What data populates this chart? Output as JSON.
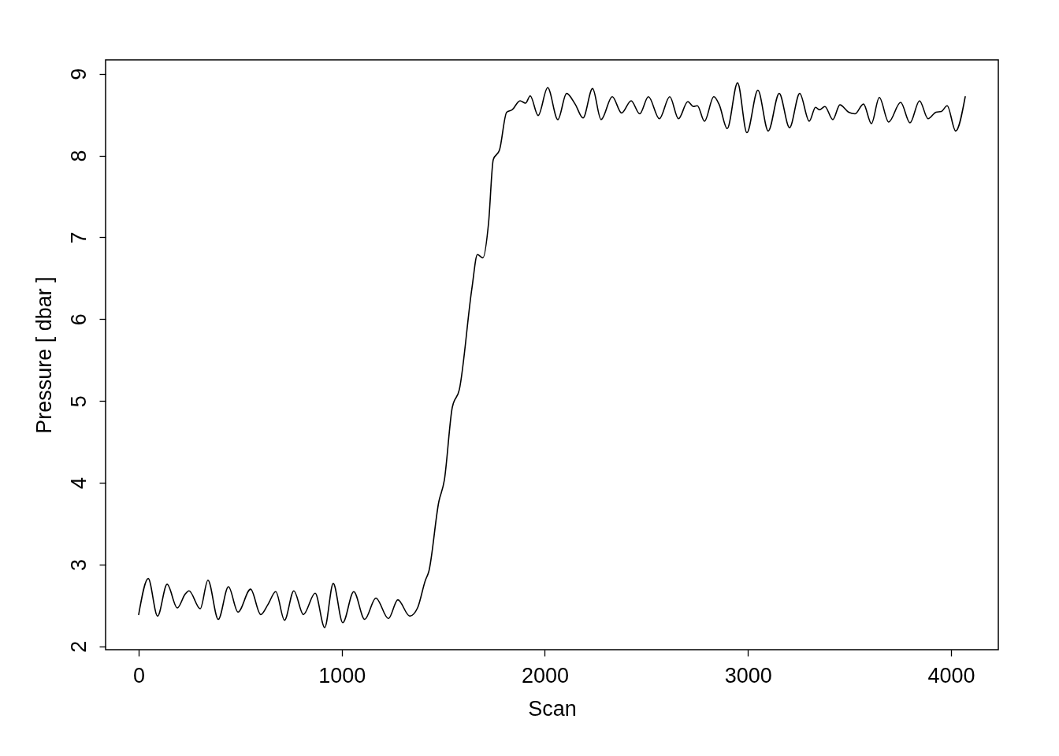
{
  "chart_data": {
    "type": "line",
    "xlabel": "Scan",
    "ylabel": "Pressure [ dbar ]",
    "color": "#000000",
    "line_style": "solid",
    "grid": false,
    "x": [
      0,
      47,
      93,
      140,
      190,
      229,
      248,
      303,
      341,
      392,
      442,
      489,
      551,
      601,
      636,
      675,
      718,
      764,
      811,
      869,
      916,
      958,
      1005,
      1059,
      1113,
      1168,
      1230,
      1276,
      1335,
      1373,
      1412,
      1428,
      1478,
      1505,
      1544,
      1579,
      1641,
      1668,
      1695,
      1723,
      1746,
      1777,
      1812,
      1839,
      1878,
      1905,
      1928,
      1967,
      2014,
      2064,
      2107,
      2149,
      2188,
      2235,
      2277,
      2332,
      2378,
      2425,
      2467,
      2510,
      2564,
      2615,
      2658,
      2704,
      2731,
      2751,
      2786,
      2832,
      2859,
      2898,
      2949,
      2995,
      3049,
      3100,
      3154,
      3205,
      3255,
      3302,
      3333,
      3352,
      3379,
      3418,
      3453,
      3496,
      3527,
      3569,
      3608,
      3647,
      3693,
      3752,
      3798,
      3845,
      3887,
      3926,
      3953,
      3981,
      4023,
      4070
    ],
    "values": [
      2.39,
      2.83,
      2.37,
      2.76,
      2.47,
      2.64,
      2.68,
      2.46,
      2.81,
      2.33,
      2.73,
      2.42,
      2.7,
      2.39,
      2.51,
      2.67,
      2.32,
      2.68,
      2.39,
      2.65,
      2.23,
      2.77,
      2.29,
      2.67,
      2.33,
      2.59,
      2.34,
      2.57,
      2.37,
      2.47,
      2.81,
      2.91,
      3.77,
      4.03,
      4.92,
      5.14,
      6.38,
      6.79,
      6.75,
      7.18,
      7.95,
      8.07,
      8.53,
      8.56,
      8.67,
      8.64,
      8.73,
      8.49,
      8.83,
      8.44,
      8.76,
      8.63,
      8.46,
      8.82,
      8.44,
      8.72,
      8.52,
      8.67,
      8.51,
      8.72,
      8.45,
      8.72,
      8.45,
      8.66,
      8.6,
      8.61,
      8.42,
      8.72,
      8.62,
      8.33,
      8.89,
      8.28,
      8.8,
      8.3,
      8.76,
      8.34,
      8.76,
      8.42,
      8.59,
      8.56,
      8.6,
      8.44,
      8.62,
      8.53,
      8.51,
      8.63,
      8.39,
      8.71,
      8.41,
      8.65,
      8.4,
      8.67,
      8.45,
      8.53,
      8.54,
      8.61,
      8.3,
      8.72
    ],
    "xlim": [
      -163,
      4233
    ],
    "ylim": [
      1.96,
      9.17
    ],
    "xticks": [
      0,
      1000,
      2000,
      3000,
      4000
    ],
    "yticks": [
      2,
      3,
      4,
      5,
      6,
      7,
      8,
      9
    ]
  }
}
